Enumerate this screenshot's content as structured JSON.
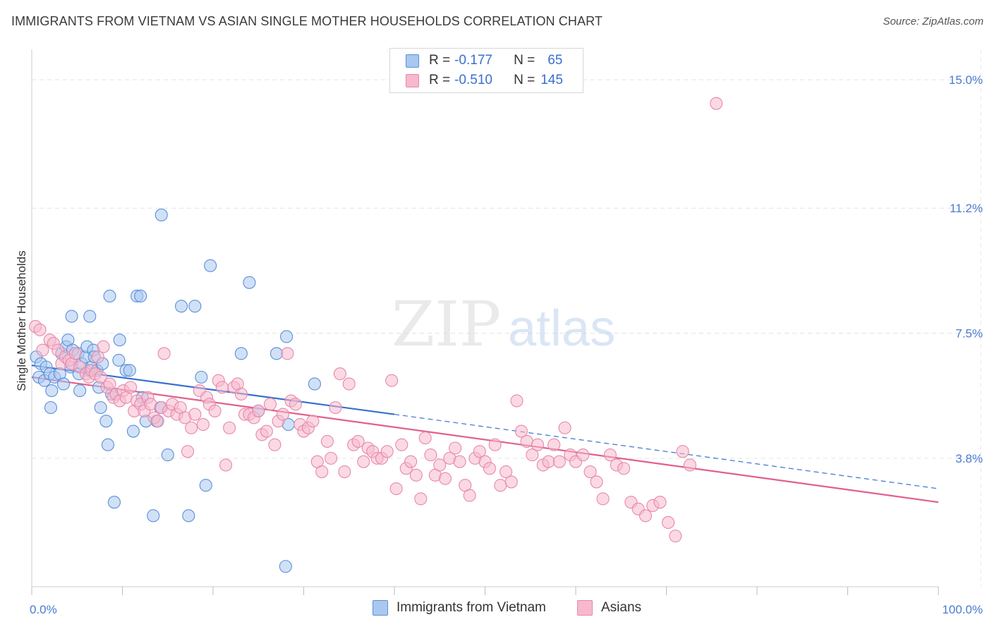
{
  "title": "IMMIGRANTS FROM VIETNAM VS ASIAN SINGLE MOTHER HOUSEHOLDS CORRELATION CHART",
  "source": "Source: ZipAtlas.com",
  "watermark": {
    "zip": "ZIP",
    "atlas": "atlas"
  },
  "colors": {
    "blue_fill": "#a9c8f0",
    "blue_stroke": "#5b8fd8",
    "blue_line": "#3570d0",
    "pink_fill": "#f6b9cd",
    "pink_stroke": "#e888a8",
    "pink_line": "#e0608d",
    "tick_text": "#4a7bd0",
    "grid": "#e4e4e4"
  },
  "legend": {
    "rows": [
      {
        "r_label": "R =",
        "r_value": "-0.177",
        "n_label": "N =",
        "n_value": "65"
      },
      {
        "r_label": "R =",
        "r_value": "-0.510",
        "n_label": "N =",
        "n_value": "145"
      }
    ]
  },
  "bottom_legend": [
    "Immigrants from Vietnam",
    "Asians"
  ],
  "chart_data": {
    "type": "scatter",
    "xlabel": "",
    "ylabel": "Single Mother Households",
    "xlim": [
      0,
      100
    ],
    "ylim": [
      0,
      15.9
    ],
    "x_tick_labels": [
      "0.0%",
      "100.0%"
    ],
    "y_ticks": [
      3.8,
      7.5,
      11.2,
      15.0
    ],
    "y_tick_labels": [
      "3.8%",
      "7.5%",
      "11.2%",
      "15.0%"
    ],
    "grid": true,
    "series": [
      {
        "name": "Immigrants from Vietnam",
        "color": "blue",
        "trend": {
          "x0": 0,
          "y0": 6.55,
          "x1": 40,
          "y1": 5.1,
          "dash_to_x": 100,
          "dash_to_y": 2.9
        },
        "points": [
          [
            0.5,
            6.8
          ],
          [
            0.8,
            6.2
          ],
          [
            1.0,
            6.6
          ],
          [
            1.4,
            6.1
          ],
          [
            1.6,
            6.5
          ],
          [
            2.0,
            6.3
          ],
          [
            2.1,
            5.3
          ],
          [
            2.2,
            5.8
          ],
          [
            2.5,
            6.2
          ],
          [
            3.1,
            6.3
          ],
          [
            3.3,
            6.9
          ],
          [
            3.5,
            6.0
          ],
          [
            3.8,
            7.1
          ],
          [
            4.0,
            7.3
          ],
          [
            4.3,
            6.5
          ],
          [
            4.5,
            7.0
          ],
          [
            4.4,
            8.0
          ],
          [
            5.1,
            6.9
          ],
          [
            5.2,
            6.3
          ],
          [
            5.5,
            6.6
          ],
          [
            5.3,
            5.8
          ],
          [
            5.9,
            6.8
          ],
          [
            6.1,
            7.1
          ],
          [
            6.3,
            6.4
          ],
          [
            6.4,
            8.0
          ],
          [
            6.6,
            6.5
          ],
          [
            6.8,
            7.0
          ],
          [
            6.9,
            6.8
          ],
          [
            7.2,
            6.4
          ],
          [
            7.4,
            5.9
          ],
          [
            7.6,
            5.3
          ],
          [
            7.8,
            6.6
          ],
          [
            8.2,
            4.9
          ],
          [
            8.4,
            4.2
          ],
          [
            8.6,
            8.6
          ],
          [
            8.8,
            5.7
          ],
          [
            9.1,
            2.5
          ],
          [
            9.6,
            6.7
          ],
          [
            9.7,
            7.3
          ],
          [
            10.4,
            6.4
          ],
          [
            10.8,
            6.4
          ],
          [
            11.2,
            4.6
          ],
          [
            11.6,
            8.6
          ],
          [
            12.0,
            8.6
          ],
          [
            12.2,
            5.6
          ],
          [
            12.6,
            4.9
          ],
          [
            13.4,
            2.1
          ],
          [
            13.8,
            4.9
          ],
          [
            14.2,
            5.3
          ],
          [
            14.3,
            11.0
          ],
          [
            15.0,
            3.9
          ],
          [
            16.5,
            8.3
          ],
          [
            17.3,
            2.1
          ],
          [
            18.0,
            8.3
          ],
          [
            18.7,
            6.2
          ],
          [
            19.2,
            3.0
          ],
          [
            19.7,
            9.5
          ],
          [
            23.1,
            6.9
          ],
          [
            24.0,
            9.0
          ],
          [
            25.0,
            5.2
          ],
          [
            27.0,
            6.9
          ],
          [
            28.1,
            7.4
          ],
          [
            28.3,
            4.8
          ],
          [
            31.2,
            6.0
          ],
          [
            28.0,
            0.6
          ]
        ]
      },
      {
        "name": "Asians",
        "color": "pink",
        "trend": {
          "x0": 0,
          "y0": 6.2,
          "x1": 100,
          "y1": 2.5
        },
        "points": [
          [
            0.4,
            7.7
          ],
          [
            0.9,
            7.6
          ],
          [
            1.2,
            7.0
          ],
          [
            2.0,
            7.3
          ],
          [
            2.4,
            7.2
          ],
          [
            2.9,
            7.0
          ],
          [
            3.3,
            6.6
          ],
          [
            3.7,
            6.8
          ],
          [
            4.1,
            6.7
          ],
          [
            4.4,
            6.6
          ],
          [
            4.8,
            6.9
          ],
          [
            5.3,
            6.5
          ],
          [
            6.0,
            6.3
          ],
          [
            6.3,
            6.2
          ],
          [
            6.6,
            6.4
          ],
          [
            7.0,
            6.3
          ],
          [
            7.3,
            6.8
          ],
          [
            7.6,
            6.2
          ],
          [
            7.9,
            7.1
          ],
          [
            8.3,
            5.9
          ],
          [
            8.6,
            6.0
          ],
          [
            9.0,
            5.6
          ],
          [
            9.3,
            5.7
          ],
          [
            9.7,
            5.5
          ],
          [
            10.1,
            5.8
          ],
          [
            10.4,
            5.6
          ],
          [
            10.9,
            5.9
          ],
          [
            11.3,
            5.2
          ],
          [
            11.6,
            5.5
          ],
          [
            12.0,
            5.4
          ],
          [
            12.4,
            5.2
          ],
          [
            12.8,
            5.6
          ],
          [
            13.1,
            5.4
          ],
          [
            13.5,
            5.0
          ],
          [
            13.9,
            4.9
          ],
          [
            14.3,
            5.3
          ],
          [
            14.6,
            6.9
          ],
          [
            15.1,
            5.2
          ],
          [
            15.5,
            5.4
          ],
          [
            16.0,
            5.1
          ],
          [
            16.4,
            5.3
          ],
          [
            16.9,
            5.0
          ],
          [
            17.2,
            4.0
          ],
          [
            17.6,
            4.7
          ],
          [
            18.0,
            5.1
          ],
          [
            18.5,
            5.8
          ],
          [
            18.9,
            4.8
          ],
          [
            19.3,
            5.6
          ],
          [
            19.6,
            5.4
          ],
          [
            20.2,
            5.2
          ],
          [
            20.6,
            6.1
          ],
          [
            21.0,
            5.9
          ],
          [
            21.4,
            3.6
          ],
          [
            21.8,
            4.7
          ],
          [
            22.3,
            5.9
          ],
          [
            22.7,
            6.0
          ],
          [
            23.1,
            5.7
          ],
          [
            23.5,
            5.1
          ],
          [
            24.0,
            5.1
          ],
          [
            24.5,
            5.0
          ],
          [
            25.0,
            5.2
          ],
          [
            25.4,
            4.5
          ],
          [
            25.9,
            4.6
          ],
          [
            26.3,
            5.4
          ],
          [
            26.8,
            4.2
          ],
          [
            27.2,
            4.9
          ],
          [
            27.7,
            5.1
          ],
          [
            28.2,
            6.9
          ],
          [
            28.6,
            5.5
          ],
          [
            29.1,
            5.4
          ],
          [
            29.6,
            4.8
          ],
          [
            30.0,
            4.6
          ],
          [
            30.5,
            4.7
          ],
          [
            31.0,
            4.9
          ],
          [
            31.5,
            3.7
          ],
          [
            32.0,
            3.4
          ],
          [
            32.6,
            4.3
          ],
          [
            33.0,
            3.8
          ],
          [
            33.5,
            5.3
          ],
          [
            34.0,
            6.3
          ],
          [
            34.5,
            3.4
          ],
          [
            35.0,
            6.0
          ],
          [
            35.5,
            4.2
          ],
          [
            36.0,
            4.3
          ],
          [
            36.6,
            3.7
          ],
          [
            37.1,
            4.1
          ],
          [
            37.6,
            4.0
          ],
          [
            38.1,
            3.8
          ],
          [
            38.6,
            3.8
          ],
          [
            39.2,
            4.0
          ],
          [
            39.7,
            6.1
          ],
          [
            40.2,
            2.9
          ],
          [
            40.8,
            4.2
          ],
          [
            41.3,
            3.5
          ],
          [
            41.8,
            3.7
          ],
          [
            42.4,
            3.3
          ],
          [
            42.9,
            2.6
          ],
          [
            43.4,
            4.4
          ],
          [
            44.0,
            3.9
          ],
          [
            44.5,
            3.3
          ],
          [
            45.0,
            3.6
          ],
          [
            45.6,
            3.2
          ],
          [
            46.1,
            3.8
          ],
          [
            46.7,
            4.1
          ],
          [
            47.2,
            3.7
          ],
          [
            47.8,
            3.0
          ],
          [
            48.3,
            2.7
          ],
          [
            48.9,
            3.8
          ],
          [
            49.4,
            4.0
          ],
          [
            50.0,
            3.7
          ],
          [
            50.5,
            3.5
          ],
          [
            51.1,
            4.2
          ],
          [
            51.7,
            3.0
          ],
          [
            52.3,
            3.4
          ],
          [
            52.9,
            3.1
          ],
          [
            53.5,
            5.5
          ],
          [
            54.0,
            4.6
          ],
          [
            54.6,
            4.3
          ],
          [
            55.2,
            3.9
          ],
          [
            55.8,
            4.2
          ],
          [
            56.4,
            3.6
          ],
          [
            57.0,
            3.7
          ],
          [
            57.6,
            4.2
          ],
          [
            58.2,
            3.7
          ],
          [
            58.8,
            4.7
          ],
          [
            59.4,
            3.9
          ],
          [
            60.0,
            3.7
          ],
          [
            60.8,
            3.9
          ],
          [
            61.6,
            3.4
          ],
          [
            62.3,
            3.1
          ],
          [
            63.0,
            2.6
          ],
          [
            63.8,
            3.9
          ],
          [
            64.5,
            3.6
          ],
          [
            65.3,
            3.5
          ],
          [
            66.1,
            2.5
          ],
          [
            66.9,
            2.3
          ],
          [
            67.7,
            2.1
          ],
          [
            68.5,
            2.4
          ],
          [
            69.3,
            2.5
          ],
          [
            70.2,
            1.9
          ],
          [
            71.0,
            1.5
          ],
          [
            71.8,
            4.0
          ],
          [
            72.6,
            3.6
          ],
          [
            75.5,
            14.3
          ]
        ]
      }
    ]
  }
}
